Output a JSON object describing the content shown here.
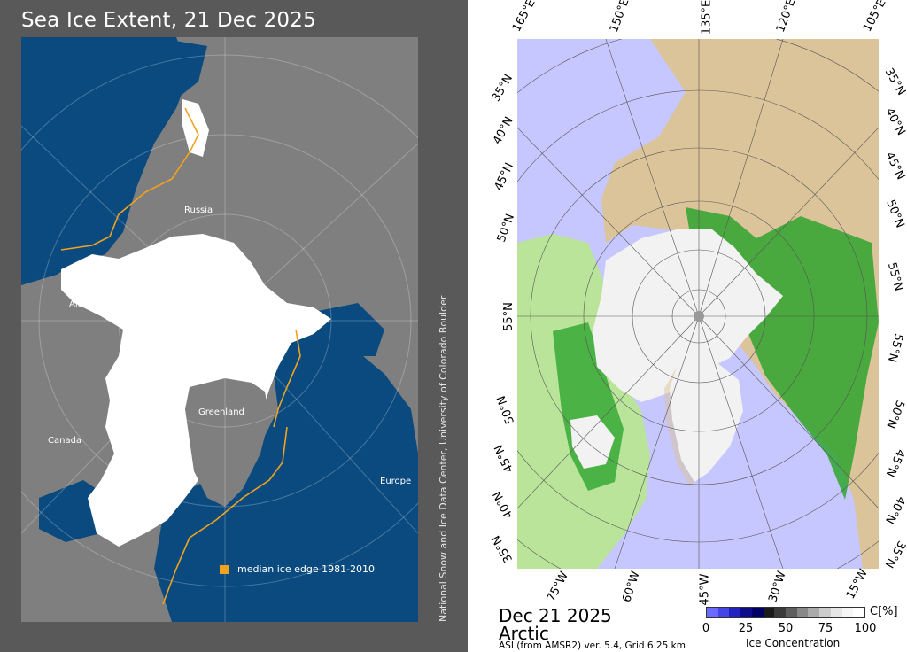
{
  "left_panel": {
    "title": "Sea Ice Extent, 21 Dec 2025",
    "labels": {
      "russia": "Russia",
      "alaska": "Alaska",
      "canada": "Canada",
      "greenland": "Greenland",
      "europe": "Europe"
    },
    "legend": "median ice edge 1981-2010",
    "credit": "National Snow and Ice Data Center, University of Colorado Boulder",
    "colors": {
      "ocean": "#0a4a7f",
      "land": "#7f7f7f",
      "ice": "#ffffff",
      "median_edge": "#f1a31f",
      "background": "#595959"
    }
  },
  "right_panel": {
    "date": "Dec 21 2025",
    "region": "Arctic",
    "source": "ASI (from AMSR2) ver. 5.4,  Grid 6.25 km",
    "top_ticks": [
      "165°E",
      "150°E",
      "135°E",
      "120°E",
      "105°E"
    ],
    "bottom_ticks": [
      "75°W",
      "60°W",
      "45°W",
      "30°W",
      "15°W"
    ],
    "left_ticks": [
      "35°N",
      "40°N",
      "45°N",
      "50°N",
      "55°N",
      "50°N",
      "45°N",
      "40°N",
      "35°N"
    ],
    "right_ticks": [
      "35°N",
      "40°N",
      "45°N",
      "50°N",
      "55°N",
      "55°N",
      "50°N",
      "45°N",
      "40°N",
      "35°N"
    ],
    "colorbar": {
      "unit": "C[%]",
      "title": "Ice Concentration",
      "ticks": [
        "0",
        "25",
        "50",
        "75",
        "100"
      ],
      "colors": [
        "#6a6aff",
        "#4646e6",
        "#2323c0",
        "#0d0d8c",
        "#000066",
        "#1a1a1a",
        "#3a3a3a",
        "#5e5e5e",
        "#888888",
        "#aaaaaa",
        "#cccccc",
        "#e6e6e6",
        "#f6f6f6",
        "#ffffff"
      ]
    },
    "colors": {
      "open_water": "#c7c7ff",
      "land_low": "#2fa52f",
      "land_mid": "#b9e49a",
      "land_high": "#dcc49a",
      "ice": "#f2f2f2"
    }
  }
}
